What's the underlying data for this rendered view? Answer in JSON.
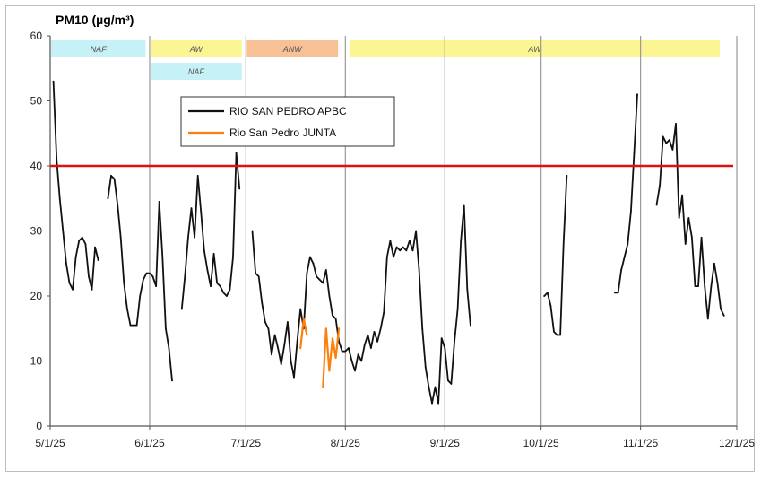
{
  "chart_data": {
    "type": "line",
    "title": "PM10 (µg/m³)",
    "xlabel": "",
    "ylabel": "",
    "ylim": [
      0,
      60
    ],
    "xlim": [
      "2025-05-01",
      "2025-12-01"
    ],
    "y_ticks": [
      "0",
      "10",
      "20",
      "30",
      "40",
      "50",
      "60"
    ],
    "x_ticks": [
      {
        "date": "2025-05-01",
        "label": "5/1/25"
      },
      {
        "date": "2025-06-01",
        "label": "6/1/25"
      },
      {
        "date": "2025-07-01",
        "label": "7/1/25"
      },
      {
        "date": "2025-08-01",
        "label": "8/1/25"
      },
      {
        "date": "2025-09-01",
        "label": "9/1/25"
      },
      {
        "date": "2025-10-01",
        "label": "10/1/25"
      },
      {
        "date": "2025-11-01",
        "label": "11/1/25"
      },
      {
        "date": "2025-12-01",
        "label": "12/1/25"
      }
    ],
    "vertical_gridlines": true,
    "horizontal_gridlines": false,
    "legend_position": "upper-middle",
    "threshold": {
      "value": 40,
      "color": "#e01010"
    },
    "bands": [
      {
        "label": "NAF",
        "start": "2025-05-01",
        "end": "2025-05-31",
        "row": 0,
        "color": "#c6f1f7"
      },
      {
        "label": "AW",
        "start": "2025-06-01",
        "end": "2025-06-30",
        "row": 0,
        "color": "#fbf593"
      },
      {
        "label": "NAF",
        "start": "2025-06-01",
        "end": "2025-06-30",
        "row": 1,
        "color": "#c6f1f7"
      },
      {
        "label": "ANW",
        "start": "2025-07-01",
        "end": "2025-07-30",
        "row": 0,
        "color": "#f7c095"
      },
      {
        "label": "AW",
        "start": "2025-08-02",
        "end": "2025-11-26",
        "row": 0,
        "color": "#fbf593"
      }
    ],
    "series": [
      {
        "name": "RIO SAN PEDRO APBC",
        "color": "#111111",
        "segments": [
          [
            [
              "2025-05-02",
              53
            ],
            [
              "2025-05-03",
              41
            ],
            [
              "2025-05-04",
              35
            ],
            [
              "2025-05-05",
              30
            ],
            [
              "2025-05-06",
              25
            ],
            [
              "2025-05-07",
              22
            ],
            [
              "2025-05-08",
              21
            ],
            [
              "2025-05-09",
              26
            ],
            [
              "2025-05-10",
              28.5
            ],
            [
              "2025-05-11",
              29
            ],
            [
              "2025-05-12",
              28
            ],
            [
              "2025-05-13",
              23
            ],
            [
              "2025-05-14",
              21
            ],
            [
              "2025-05-15",
              27.5
            ],
            [
              "2025-05-16",
              25.5
            ]
          ],
          [
            [
              "2025-05-19",
              35
            ],
            [
              "2025-05-20",
              38.5
            ],
            [
              "2025-05-21",
              38
            ],
            [
              "2025-05-22",
              34
            ],
            [
              "2025-05-23",
              29
            ],
            [
              "2025-05-24",
              22
            ],
            [
              "2025-05-25",
              18
            ],
            [
              "2025-05-26",
              15.5
            ],
            [
              "2025-05-27",
              15.5
            ],
            [
              "2025-05-28",
              15.5
            ],
            [
              "2025-05-29",
              20
            ],
            [
              "2025-05-30",
              22.5
            ],
            [
              "2025-05-31",
              23.5
            ],
            [
              "2025-06-01",
              23.5
            ],
            [
              "2025-06-02",
              23
            ],
            [
              "2025-06-03",
              21.5
            ],
            [
              "2025-06-04",
              34.5
            ],
            [
              "2025-06-05",
              26
            ],
            [
              "2025-06-06",
              15
            ],
            [
              "2025-06-07",
              12
            ],
            [
              "2025-06-08",
              7
            ]
          ],
          [
            [
              "2025-06-11",
              18
            ],
            [
              "2025-06-12",
              23
            ],
            [
              "2025-06-13",
              29
            ],
            [
              "2025-06-14",
              33.5
            ],
            [
              "2025-06-15",
              29
            ],
            [
              "2025-06-16",
              38.5
            ],
            [
              "2025-06-17",
              33
            ],
            [
              "2025-06-18",
              27
            ],
            [
              "2025-06-19",
              24
            ],
            [
              "2025-06-20",
              21.5
            ],
            [
              "2025-06-21",
              26.5
            ],
            [
              "2025-06-22",
              22
            ],
            [
              "2025-06-23",
              21.5
            ],
            [
              "2025-06-24",
              20.5
            ],
            [
              "2025-06-25",
              20
            ],
            [
              "2025-06-26",
              21
            ],
            [
              "2025-06-27",
              26
            ],
            [
              "2025-06-28",
              42
            ],
            [
              "2025-06-29",
              36.5
            ]
          ],
          [
            [
              "2025-07-03",
              30
            ],
            [
              "2025-07-04",
              23.5
            ],
            [
              "2025-07-05",
              23
            ],
            [
              "2025-07-06",
              19
            ],
            [
              "2025-07-07",
              16
            ],
            [
              "2025-07-08",
              15
            ],
            [
              "2025-07-09",
              11
            ],
            [
              "2025-07-10",
              14
            ],
            [
              "2025-07-11",
              12
            ],
            [
              "2025-07-12",
              9.5
            ],
            [
              "2025-07-13",
              12.5
            ],
            [
              "2025-07-14",
              16
            ],
            [
              "2025-07-15",
              10
            ],
            [
              "2025-07-16",
              7.5
            ],
            [
              "2025-07-17",
              13
            ],
            [
              "2025-07-18",
              18
            ],
            [
              "2025-07-19",
              15
            ],
            [
              "2025-07-20",
              23.5
            ],
            [
              "2025-07-21",
              26
            ],
            [
              "2025-07-22",
              25
            ],
            [
              "2025-07-23",
              23
            ],
            [
              "2025-07-24",
              22.5
            ],
            [
              "2025-07-25",
              22
            ],
            [
              "2025-07-26",
              24
            ],
            [
              "2025-07-27",
              20
            ],
            [
              "2025-07-28",
              17
            ],
            [
              "2025-07-29",
              16.5
            ],
            [
              "2025-07-30",
              13
            ],
            [
              "2025-07-31",
              11.5
            ],
            [
              "2025-08-01",
              11.5
            ],
            [
              "2025-08-02",
              12
            ],
            [
              "2025-08-03",
              10
            ],
            [
              "2025-08-04",
              8.5
            ],
            [
              "2025-08-05",
              11
            ],
            [
              "2025-08-06",
              10
            ],
            [
              "2025-08-07",
              12.5
            ],
            [
              "2025-08-08",
              14
            ],
            [
              "2025-08-09",
              12
            ],
            [
              "2025-08-10",
              14.5
            ],
            [
              "2025-08-11",
              13
            ],
            [
              "2025-08-12",
              15
            ],
            [
              "2025-08-13",
              17.5
            ],
            [
              "2025-08-14",
              26
            ],
            [
              "2025-08-15",
              28.5
            ],
            [
              "2025-08-16",
              26
            ],
            [
              "2025-08-17",
              27.5
            ],
            [
              "2025-08-18",
              27
            ],
            [
              "2025-08-19",
              27.5
            ],
            [
              "2025-08-20",
              27
            ],
            [
              "2025-08-21",
              28.5
            ],
            [
              "2025-08-22",
              27
            ],
            [
              "2025-08-23",
              30
            ],
            [
              "2025-08-24",
              24
            ],
            [
              "2025-08-25",
              15
            ],
            [
              "2025-08-26",
              9
            ],
            [
              "2025-08-27",
              6
            ],
            [
              "2025-08-28",
              3.5
            ],
            [
              "2025-08-29",
              6
            ],
            [
              "2025-08-30",
              3.5
            ],
            [
              "2025-08-31",
              13.5
            ],
            [
              "2025-09-01",
              12
            ],
            [
              "2025-09-02",
              7
            ],
            [
              "2025-09-03",
              6.5
            ],
            [
              "2025-09-04",
              13
            ],
            [
              "2025-09-05",
              18
            ],
            [
              "2025-09-06",
              28.5
            ],
            [
              "2025-09-07",
              34
            ],
            [
              "2025-09-08",
              21
            ],
            [
              "2025-09-09",
              15.5
            ]
          ],
          [
            [
              "2025-10-02",
              20
            ],
            [
              "2025-10-03",
              20.5
            ],
            [
              "2025-10-04",
              18.5
            ],
            [
              "2025-10-05",
              14.5
            ],
            [
              "2025-10-06",
              14
            ],
            [
              "2025-10-07",
              14
            ],
            [
              "2025-10-08",
              28
            ],
            [
              "2025-10-09",
              38.5
            ]
          ],
          [
            [
              "2025-10-24",
              20.5
            ],
            [
              "2025-10-25",
              20.5
            ],
            [
              "2025-10-26",
              24
            ],
            [
              "2025-10-27",
              26
            ],
            [
              "2025-10-28",
              28
            ],
            [
              "2025-10-29",
              33
            ],
            [
              "2025-10-30",
              42
            ],
            [
              "2025-10-31",
              51
            ]
          ],
          [
            [
              "2025-11-06",
              34
            ],
            [
              "2025-11-07",
              37
            ],
            [
              "2025-11-08",
              44.5
            ],
            [
              "2025-11-09",
              43.5
            ],
            [
              "2025-11-10",
              44
            ],
            [
              "2025-11-11",
              42.5
            ],
            [
              "2025-11-12",
              46.5
            ],
            [
              "2025-11-13",
              32
            ],
            [
              "2025-11-14",
              35.5
            ],
            [
              "2025-11-15",
              28
            ],
            [
              "2025-11-16",
              32
            ],
            [
              "2025-11-17",
              29
            ],
            [
              "2025-11-18",
              21.5
            ],
            [
              "2025-11-19",
              21.5
            ],
            [
              "2025-11-20",
              29
            ],
            [
              "2025-11-21",
              21.5
            ],
            [
              "2025-11-22",
              16.5
            ],
            [
              "2025-11-23",
              21.5
            ],
            [
              "2025-11-24",
              25
            ],
            [
              "2025-11-25",
              22
            ],
            [
              "2025-11-26",
              18
            ],
            [
              "2025-11-27",
              17
            ]
          ]
        ]
      },
      {
        "name": "Rio San Pedro JUNTA",
        "color": "#ff7f0e",
        "segments": [
          [
            [
              "2025-07-18",
              12
            ],
            [
              "2025-07-19",
              16.5
            ],
            [
              "2025-07-20",
              14
            ]
          ],
          [
            [
              "2025-07-25",
              6
            ],
            [
              "2025-07-26",
              15
            ],
            [
              "2025-07-27",
              8.5
            ],
            [
              "2025-07-28",
              13.5
            ],
            [
              "2025-07-29",
              10.5
            ],
            [
              "2025-07-30",
              15
            ]
          ]
        ]
      }
    ]
  }
}
